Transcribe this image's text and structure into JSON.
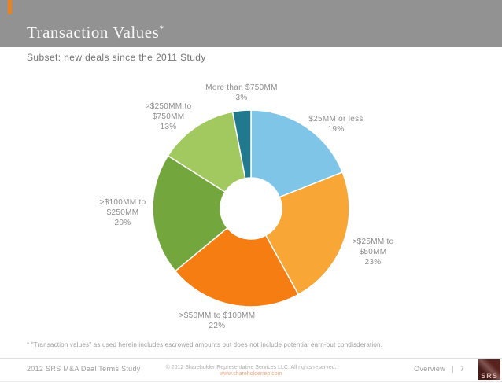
{
  "slide": {
    "title": "Transaction Values",
    "title_mark": "*",
    "subtitle": "Subset: new deals since the 2011 Study",
    "footnote": "* \"Transaction values\" as used herein includes escrowed amounts but does not include potential earn-out condisderation."
  },
  "chart_data": {
    "type": "pie",
    "subtype": "donut",
    "title": "Transaction Values*",
    "subtitle": "Subset: new deals since the 2011 Study",
    "unit": "%",
    "direction": "clockwise",
    "start_angle_deg": 0,
    "legend": "none",
    "hole_color": "#ffffff",
    "slices": [
      {
        "label": "$25MM or less",
        "value": 19,
        "pct_label": "19%",
        "label_lines": [
          "$25MM or less"
        ],
        "color": "#7fc5e8"
      },
      {
        "label": ">$25MM to $50MM",
        "value": 23,
        "pct_label": "23%",
        "label_lines": [
          ">$25MM to",
          "$50MM"
        ],
        "color": "#f8a636"
      },
      {
        "label": ">$50MM to $100MM",
        "value": 22,
        "pct_label": "22%",
        "label_lines": [
          ">$50MM to $100MM"
        ],
        "color": "#f57d12"
      },
      {
        "label": ">$100MM to $250MM",
        "value": 20,
        "pct_label": "20%",
        "label_lines": [
          ">$100MM to",
          "$250MM"
        ],
        "color": "#73a73d"
      },
      {
        "label": ">$250MM to $750MM",
        "value": 13,
        "pct_label": "13%",
        "label_lines": [
          ">$250MM to",
          "$750MM"
        ],
        "color": "#a2c95f"
      },
      {
        "label": "More than $750MM",
        "value": 3,
        "pct_label": "3%",
        "label_lines": [
          "More than $750MM"
        ],
        "color": "#20798c"
      }
    ]
  },
  "footer": {
    "left": "2012 SRS M&A Deal Terms Study",
    "copyright": "© 2012 Shareholder Representative Services LLC. All rights reserved.",
    "website": "www.shareholderrep.com",
    "section": "Overview",
    "separator": "|",
    "page_number": "7",
    "logo_text": "SRS"
  },
  "colors": {
    "header_band": "#929292",
    "accent_orange": "#f08019",
    "link_orange": "#f2a983",
    "logo_maroon": "#5d241f",
    "label_gray": "#8c8c8c"
  }
}
